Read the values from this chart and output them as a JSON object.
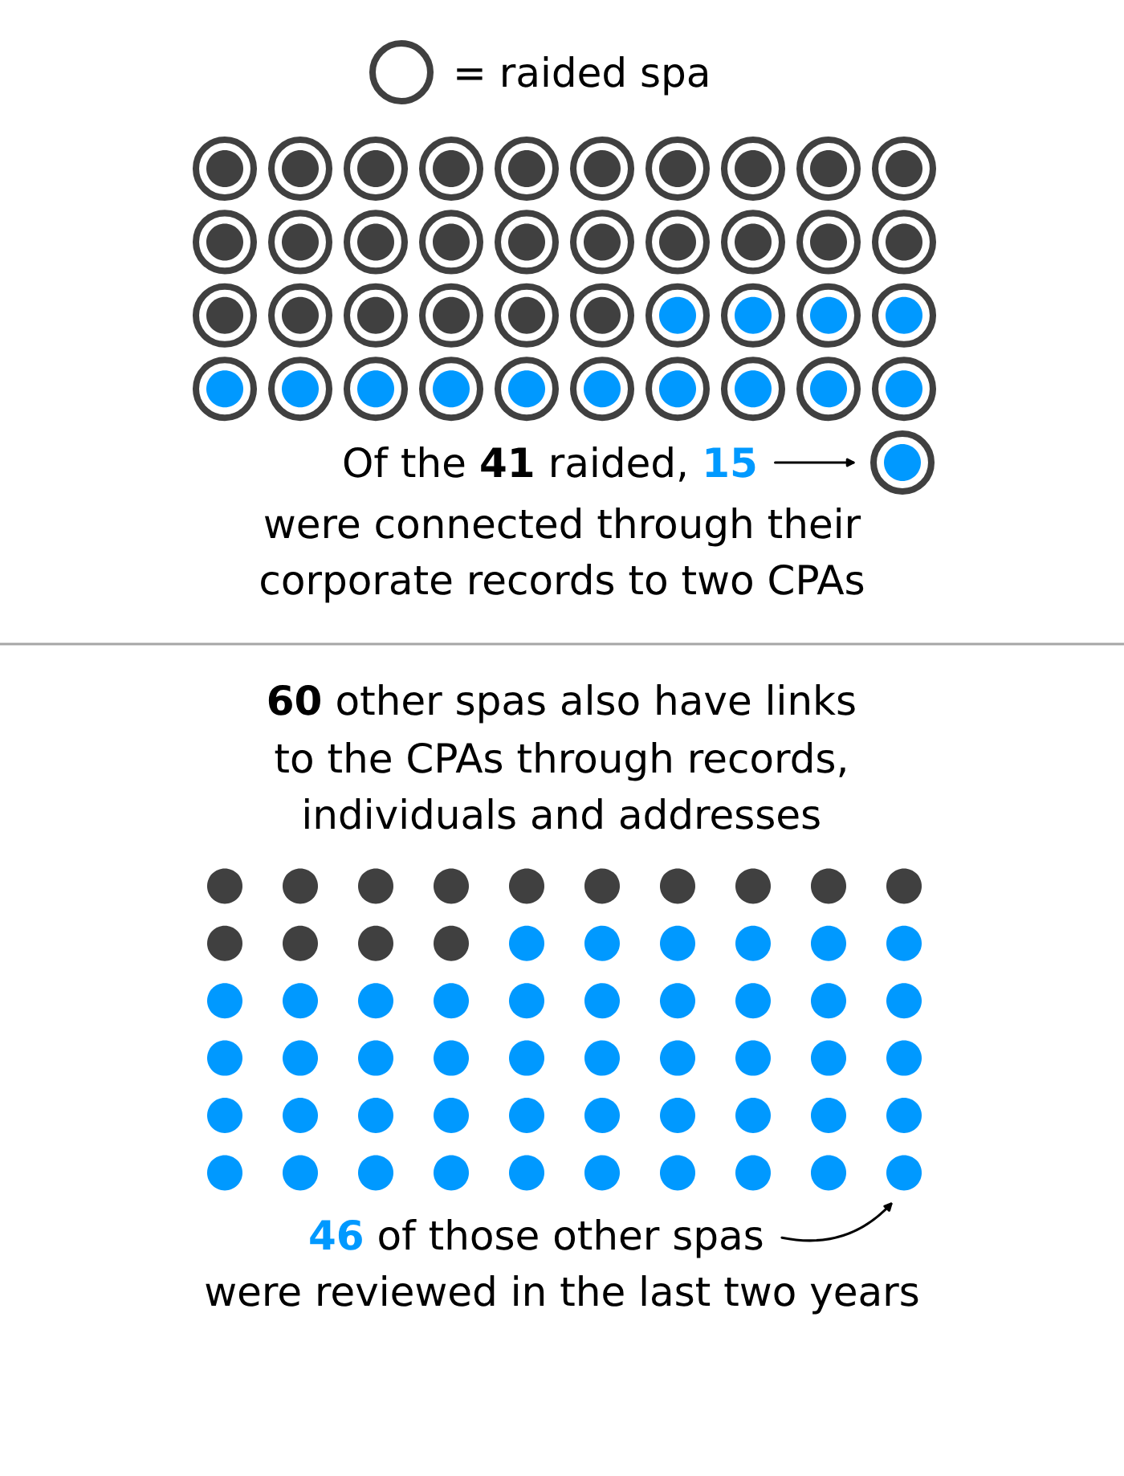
{
  "chart_data": [
    {
      "type": "other",
      "values": [
        41,
        15
      ],
      "colors": [
        "#404040",
        "#0099ff"
      ],
      "data_labels": true,
      "annotations": [
        "= raided spa",
        "Of the",
        "raided,",
        "were connected through their",
        "corporate records to two CPAs"
      ]
    },
    {
      "type": "other",
      "values": [
        60,
        46
      ],
      "colors": [
        "#404040",
        "#0099ff"
      ],
      "data_labels": true,
      "annotations": [
        "other spas also have links",
        "to the CPAs through records,",
        "individuals and addresses",
        "of those other spas",
        "were reviewed in the last two years"
      ]
    }
  ]
}
